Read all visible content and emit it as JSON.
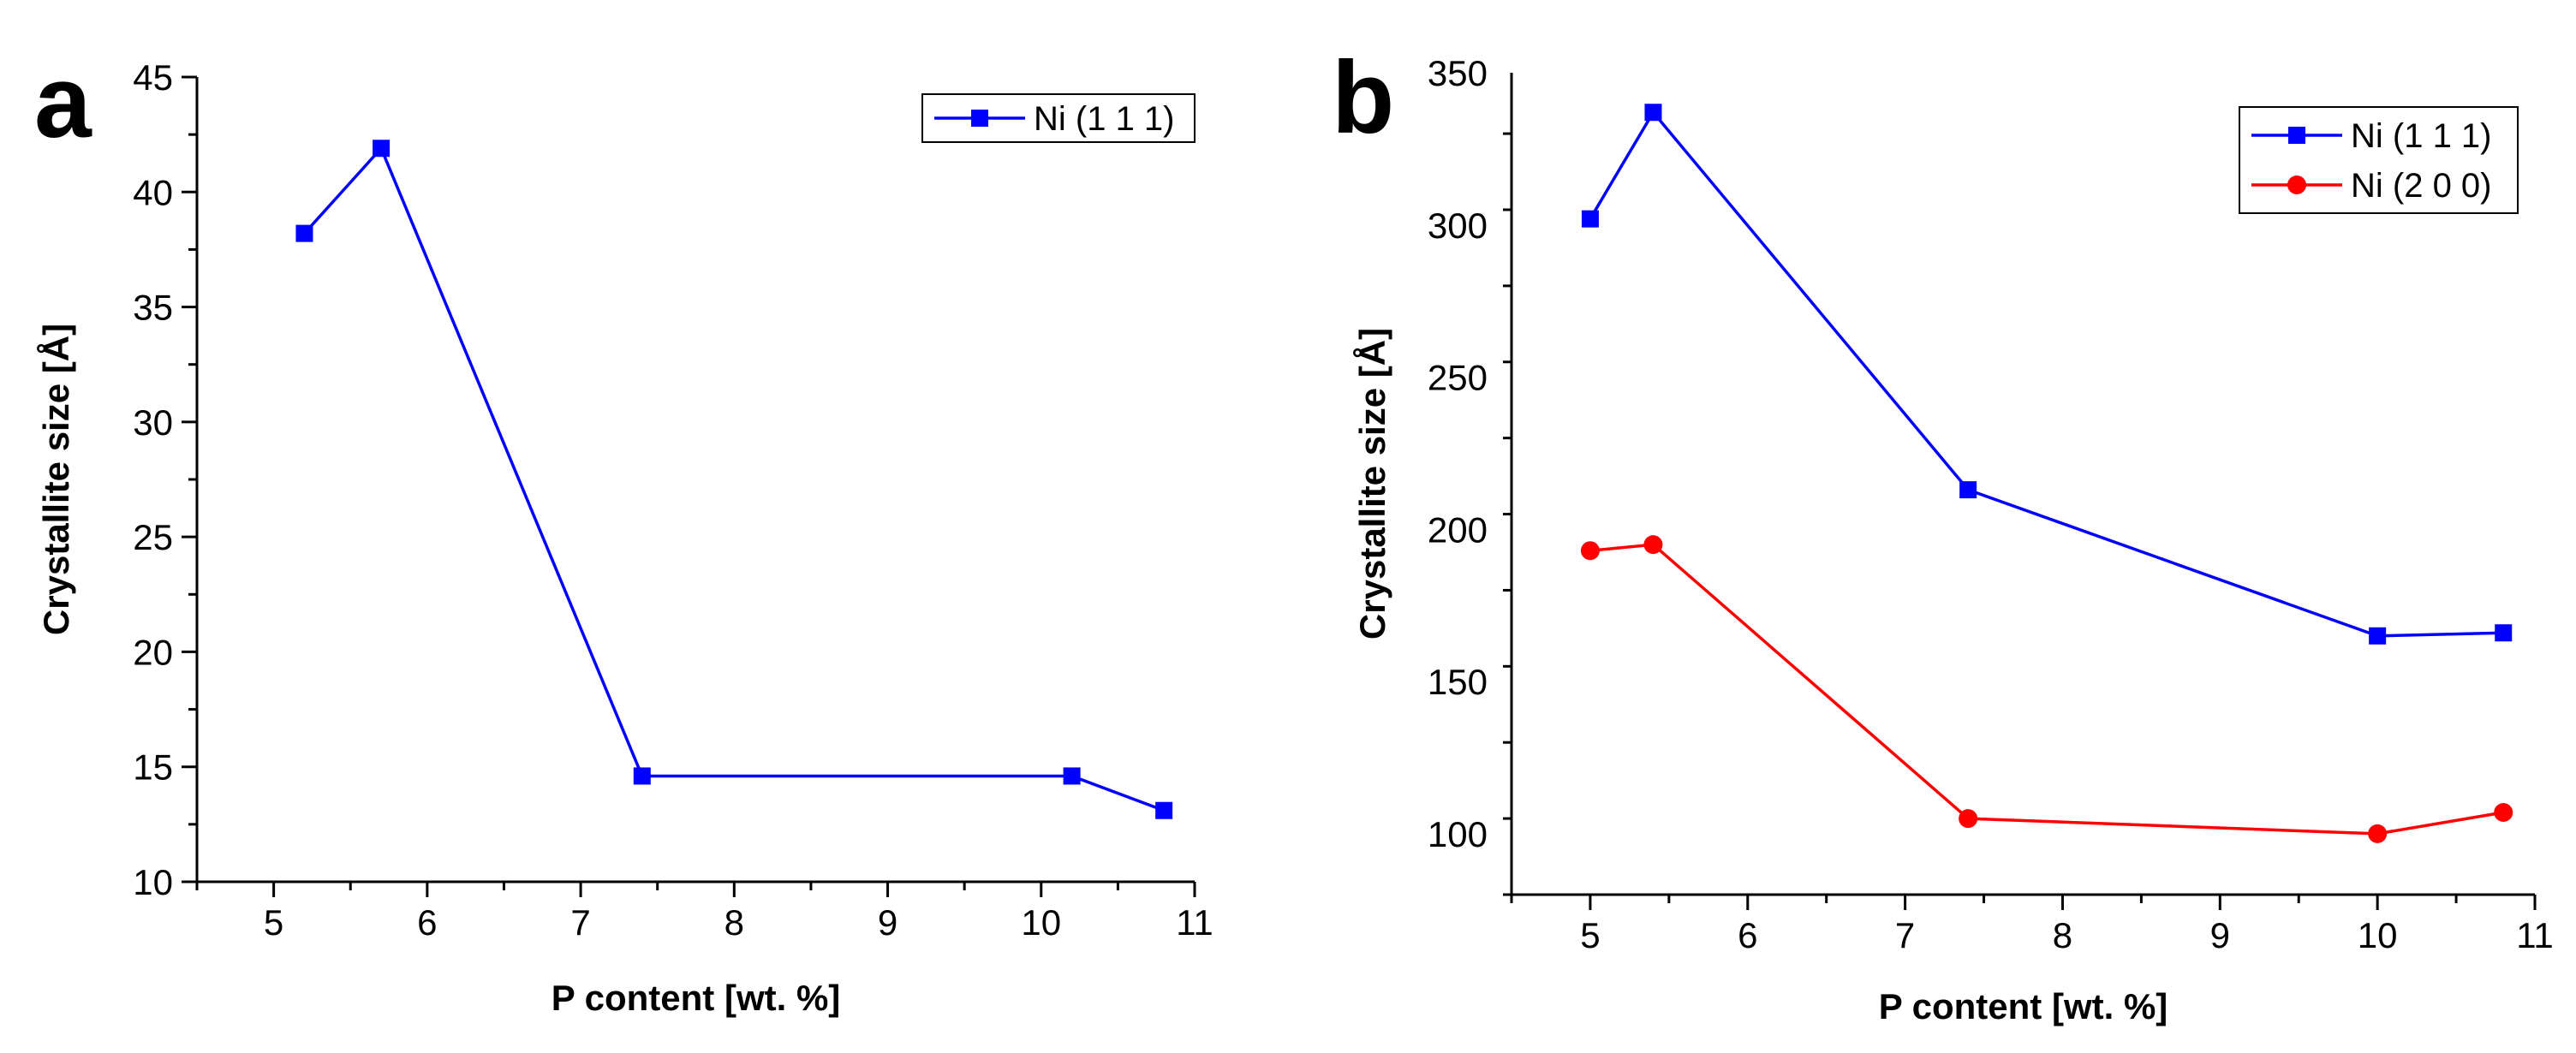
{
  "chart_data": [
    {
      "type": "line",
      "panel_label": "a",
      "title": "",
      "xlabel": "P content [wt. %]",
      "ylabel": "Crystallite size [Å]",
      "xlim": [
        4.5,
        11
      ],
      "ylim": [
        10,
        45
      ],
      "xticks": [
        5,
        6,
        7,
        8,
        9,
        10,
        11
      ],
      "yticks": [
        10,
        15,
        20,
        25,
        30,
        35,
        40,
        45
      ],
      "x_minor_step": 0.5,
      "y_minor_step": 2.5,
      "grid": false,
      "legend_position": "top-right",
      "series": [
        {
          "name": "Ni (1 1 1)",
          "color": "#0000ff",
          "marker": "square",
          "x": [
            5.2,
            5.7,
            7.4,
            10.2,
            10.8
          ],
          "y": [
            38.2,
            41.9,
            14.6,
            14.6,
            13.1
          ]
        }
      ]
    },
    {
      "type": "line",
      "panel_label": "b",
      "title": "",
      "xlabel": "P content [wt. %]",
      "ylabel": "Crystallite size [Å]",
      "xlim": [
        4.5,
        11
      ],
      "ylim": [
        80,
        350
      ],
      "xticks": [
        5,
        6,
        7,
        8,
        9,
        10,
        11
      ],
      "yticks": [
        100,
        150,
        200,
        250,
        300,
        350
      ],
      "x_minor_step": 0.5,
      "y_minor_step": 25,
      "grid": false,
      "legend_position": "top-right",
      "series": [
        {
          "name": "Ni (1 1 1)",
          "color": "#0000ff",
          "marker": "square",
          "x": [
            5.0,
            5.4,
            7.4,
            10.0,
            10.8
          ],
          "y": [
            302,
            337,
            213,
            165,
            166
          ]
        },
        {
          "name": "Ni (2 0 0)",
          "color": "#ff0000",
          "marker": "circle",
          "x": [
            5.0,
            5.4,
            7.4,
            10.0,
            10.8
          ],
          "y": [
            193,
            195,
            105,
            100,
            107
          ]
        }
      ]
    }
  ]
}
